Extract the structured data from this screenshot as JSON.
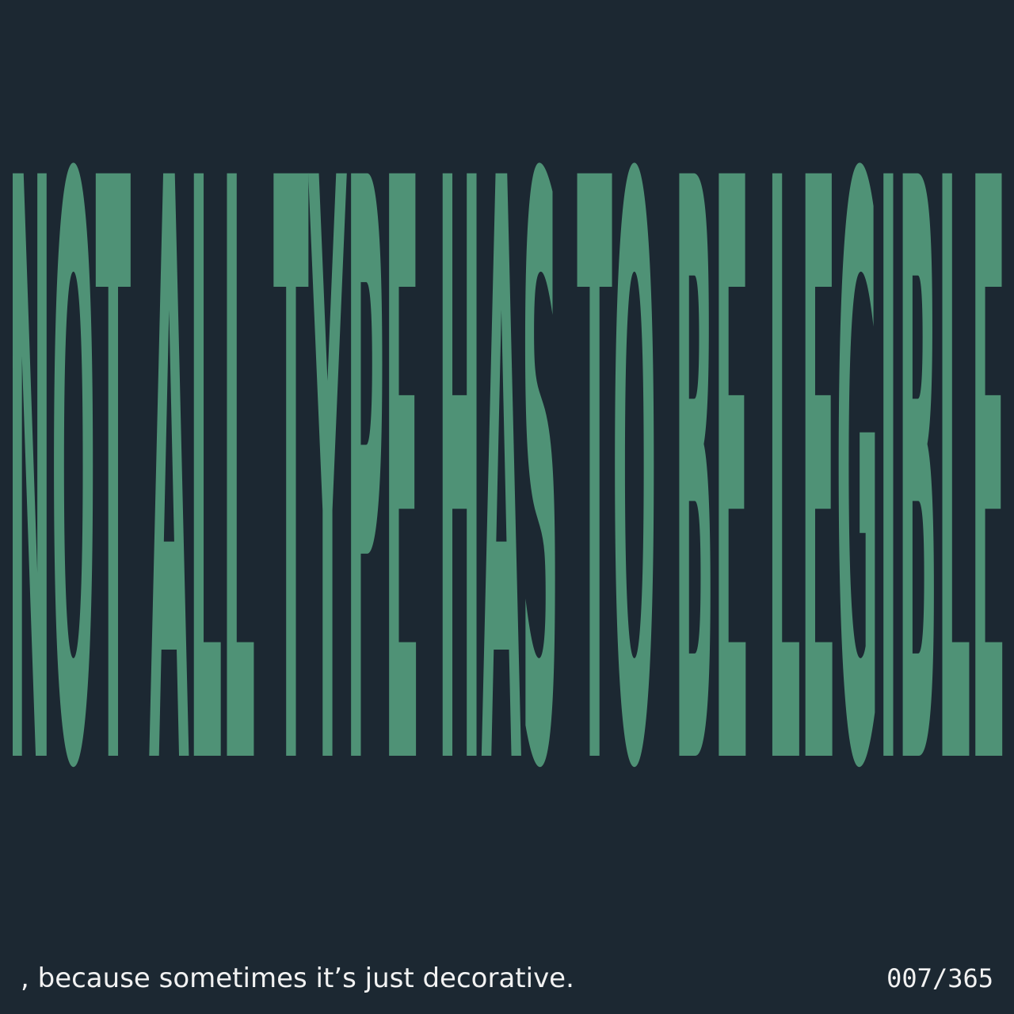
{
  "headline": {
    "text": "NOT ALL TYPE HAS TO BE LEGIBLE",
    "color": "#4f9276"
  },
  "caption": ", because sometimes it’s just decorative.",
  "counter": "007/365",
  "colors": {
    "background": "#1c2832",
    "text": "#f2f2f2"
  }
}
